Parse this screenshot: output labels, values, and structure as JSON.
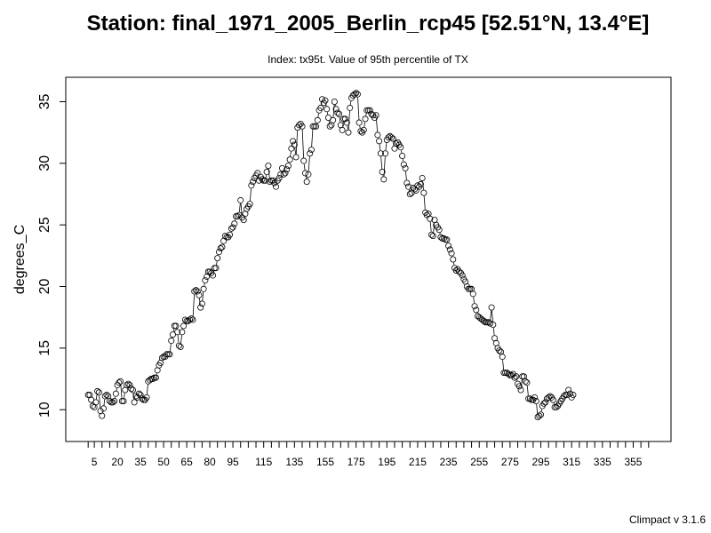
{
  "chart_data": {
    "type": "scatter",
    "title": "Station: final_1971_2005_Berlin_rcp45 [52.51°N, 13.4°E]",
    "subtitle": "Index: tx95t. Value of 95th percentile of TX",
    "ylabel": "degrees_C",
    "xlabel": "",
    "footer": "Climpact v 3.1.6",
    "x_ticks": [
      1,
      5,
      10,
      15,
      20,
      25,
      30,
      35,
      40,
      45,
      50,
      55,
      60,
      65,
      70,
      75,
      80,
      85,
      90,
      95,
      100,
      105,
      110,
      115,
      120,
      125,
      130,
      135,
      140,
      145,
      150,
      155,
      160,
      165,
      170,
      175,
      180,
      185,
      190,
      195,
      200,
      205,
      210,
      215,
      220,
      225,
      230,
      235,
      240,
      245,
      250,
      255,
      260,
      265,
      270,
      275,
      280,
      285,
      290,
      295,
      300,
      305,
      310,
      315,
      320,
      325,
      330,
      335,
      340,
      345,
      350,
      355,
      360,
      365
    ],
    "x_tick_labels": [
      "5",
      "20",
      "35",
      "50",
      "65",
      "80",
      "95",
      "115",
      "135",
      "155",
      "175",
      "195",
      "215",
      "235",
      "255",
      "275",
      "295",
      "315",
      "335",
      "355"
    ],
    "x_tick_label_values": [
      5,
      20,
      35,
      50,
      65,
      80,
      95,
      115,
      135,
      155,
      175,
      195,
      215,
      235,
      255,
      275,
      295,
      315,
      335,
      355
    ],
    "y_ticks": [
      10,
      15,
      20,
      25,
      30,
      35
    ],
    "xlim": [
      1,
      365
    ],
    "ylim": [
      8.5,
      35.9
    ],
    "grid": false,
    "marker": "open-circle-with-lines",
    "series": [
      {
        "values": [
          11.2,
          11.2,
          10.8,
          10.3,
          10.2,
          10.6,
          11.5,
          11.4,
          9.9,
          9.5,
          10.1,
          11.1,
          11.2,
          11.1,
          10.7,
          10.6,
          10.6,
          10.7,
          11.3,
          12.0,
          12.2,
          12.3,
          10.7,
          10.7,
          11.6,
          12.0,
          12.1,
          12.0,
          11.7,
          11.6,
          10.6,
          11.1,
          11.0,
          11.3,
          11.2,
          10.9,
          10.8,
          10.8,
          11.0,
          12.3,
          12.4,
          12.5,
          12.5,
          12.6,
          12.6,
          13.2,
          13.6,
          13.8,
          14.2,
          14.3,
          14.3,
          14.5,
          14.5,
          14.5,
          15.6,
          16.1,
          16.8,
          16.8,
          16.3,
          15.2,
          15.1,
          16.3,
          16.8,
          17.3,
          17.2,
          17.2,
          17.3,
          17.4,
          17.3,
          19.6,
          19.7,
          19.6,
          19.3,
          18.3,
          18.6,
          19.8,
          20.5,
          20.8,
          21.2,
          21.2,
          21.1,
          20.9,
          21.5,
          21.5,
          22.3,
          22.8,
          23.1,
          23.2,
          23.7,
          24.1,
          24.0,
          24.0,
          24.2,
          24.7,
          24.8,
          25.1,
          25.7,
          25.7,
          25.8,
          27.0,
          25.6,
          25.4,
          25.9,
          26.3,
          26.5,
          26.7,
          28.2,
          28.5,
          28.8,
          29.0,
          29.2,
          28.6,
          28.9,
          28.7,
          28.6,
          28.6,
          29.3,
          29.8,
          28.5,
          28.6,
          28.6,
          28.4,
          28.1,
          28.6,
          28.8,
          29.1,
          29.6,
          29.1,
          29.2,
          29.5,
          29.8,
          30.3,
          31.2,
          31.8,
          31.5,
          30.5,
          32.9,
          33.1,
          33.2,
          33.0,
          30.2,
          29.2,
          28.5,
          29.1,
          30.8,
          31.1,
          33.0,
          33.0,
          33.0,
          33.5,
          34.3,
          34.5,
          35.2,
          34.9,
          35.1,
          34.4,
          33.7,
          33.0,
          33.1,
          33.5,
          35.0,
          34.4,
          34.1,
          34.0,
          33.1,
          32.7,
          33.6,
          33.6,
          33.3,
          32.5,
          34.5,
          35.3,
          35.5,
          35.6,
          35.7,
          35.6,
          33.3,
          32.6,
          32.5,
          32.7,
          33.6,
          34.3,
          34.3,
          34.3,
          34.0,
          33.9,
          33.7,
          33.9,
          32.3,
          31.8,
          30.8,
          29.3,
          28.7,
          30.8,
          31.9,
          32.1,
          32.2,
          32.1,
          32.0,
          31.2,
          31.6,
          31.7,
          31.5,
          31.3,
          30.6,
          29.9,
          29.6,
          28.4,
          28.1,
          27.5,
          27.6,
          28.0,
          27.9,
          27.8,
          28.2,
          28.1,
          28.3,
          28.8,
          27.6,
          26.0,
          25.8,
          25.9,
          25.5,
          24.2,
          24.1,
          25.4,
          25.0,
          24.8,
          24.6,
          24.0,
          23.9,
          23.9,
          23.8,
          23.8,
          23.3,
          23.0,
          22.7,
          22.2,
          21.5,
          21.3,
          21.4,
          21.2,
          21.1,
          20.9,
          20.6,
          20.4,
          20.0,
          19.8,
          19.8,
          19.8,
          19.4,
          18.4,
          18.1,
          17.6,
          17.5,
          17.4,
          17.3,
          17.2,
          17.1,
          17.1,
          17.1,
          17.0,
          18.3,
          16.9,
          15.8,
          15.4,
          15.0,
          14.8,
          14.7,
          14.3,
          13.0,
          13.0,
          13.0,
          12.9,
          12.8,
          12.8,
          12.9,
          12.6,
          12.7,
          12.1,
          11.9,
          11.6,
          12.7,
          12.7,
          12.3,
          12.2,
          10.9,
          10.9,
          10.8,
          10.8,
          11.0,
          10.7,
          9.4,
          9.5,
          9.6,
          10.3,
          10.5,
          10.6,
          10.9,
          11.0,
          11.1,
          11.0,
          10.8,
          10.2,
          10.2,
          10.3,
          10.5,
          10.7,
          10.9,
          11.1,
          11.2,
          11.2,
          11.6,
          11.3,
          11.0,
          11.2
        ]
      }
    ]
  }
}
